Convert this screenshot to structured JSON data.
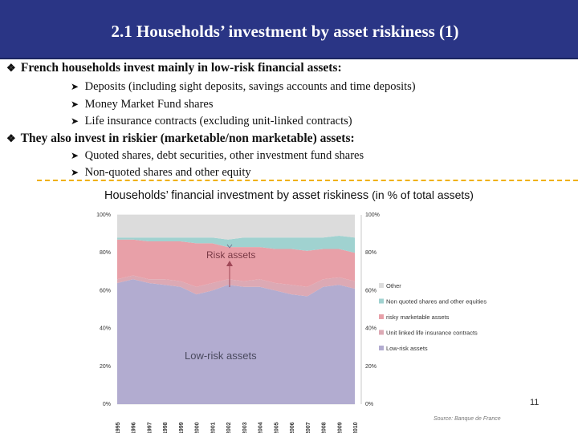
{
  "slide": {
    "title": "2.1 Households’ investment by asset riskiness (1)",
    "bullet1": "French households invest mainly in low-risk financial assets:",
    "bullet1_items": [
      "Deposits (including sight deposits, savings accounts and time deposits)",
      "Money Market Fund shares",
      "Life insurance contracts (excluding unit-linked contracts)"
    ],
    "bullet2": "They also invest in riskier (marketable/non marketable) assets:",
    "bullet2_items": [
      "Quoted shares, debt securities, other investment fund shares",
      "Non-quoted shares and other equity"
    ],
    "chart_heading": "Households’ financial investment by asset riskiness",
    "chart_heading_sub": "(in % of total assets)",
    "page_number": "11",
    "source": "Source: Banque de France"
  },
  "colors": {
    "title_bg": "#2a3585",
    "low_risk": "#b2acd0",
    "unit_linked": "#dca9b4",
    "risky_marketable": "#e8a0a8",
    "non_quoted": "#a0d2d0",
    "other": "#dcdcdc",
    "dash": "#f0b000"
  },
  "chart_data": {
    "type": "area",
    "x": [
      "1995",
      "1996",
      "1997",
      "1998",
      "1999",
      "2000",
      "2001",
      "2002",
      "2003",
      "2004",
      "2005",
      "2006",
      "2007",
      "2008",
      "2009",
      "2010"
    ],
    "yticks": [
      "0%",
      "20%",
      "40%",
      "60%",
      "80%",
      "100%"
    ],
    "ylim": [
      0,
      100
    ],
    "stacked": true,
    "series": [
      {
        "name": "Low-risk assets",
        "color": "#b2acd0",
        "values": [
          64,
          66,
          64,
          63,
          62,
          58,
          60,
          63,
          62,
          62,
          60,
          58,
          57,
          62,
          63,
          61
        ]
      },
      {
        "name": "Unit linked life insurance contracts",
        "color": "#dca9b4",
        "values": [
          2,
          2,
          2,
          3,
          3,
          4,
          4,
          3,
          3,
          4,
          4,
          5,
          5,
          4,
          4,
          4
        ]
      },
      {
        "name": "risky marketable  assets",
        "color": "#e8a0a8",
        "values": [
          21,
          19,
          20,
          20,
          21,
          23,
          21,
          17,
          18,
          17,
          18,
          19,
          19,
          16,
          15,
          15
        ]
      },
      {
        "name": "Non quoted shares and other equities",
        "color": "#a0d2d0",
        "values": [
          1,
          1,
          2,
          2,
          2,
          3,
          3,
          4,
          5,
          5,
          6,
          6,
          7,
          6,
          7,
          8
        ]
      },
      {
        "name": "Other",
        "color": "#dcdcdc",
        "values": [
          12,
          12,
          12,
          12,
          12,
          12,
          12,
          13,
          12,
          12,
          12,
          12,
          12,
          12,
          11,
          12
        ]
      }
    ],
    "annotations": [
      "Risk assets",
      "Low-risk assets"
    ],
    "legend_order": [
      "Other",
      "Non quoted shares and other equities",
      "risky marketable  assets",
      "Unit linked life insurance contracts",
      "Low-risk assets"
    ],
    "legend_position": "right"
  }
}
